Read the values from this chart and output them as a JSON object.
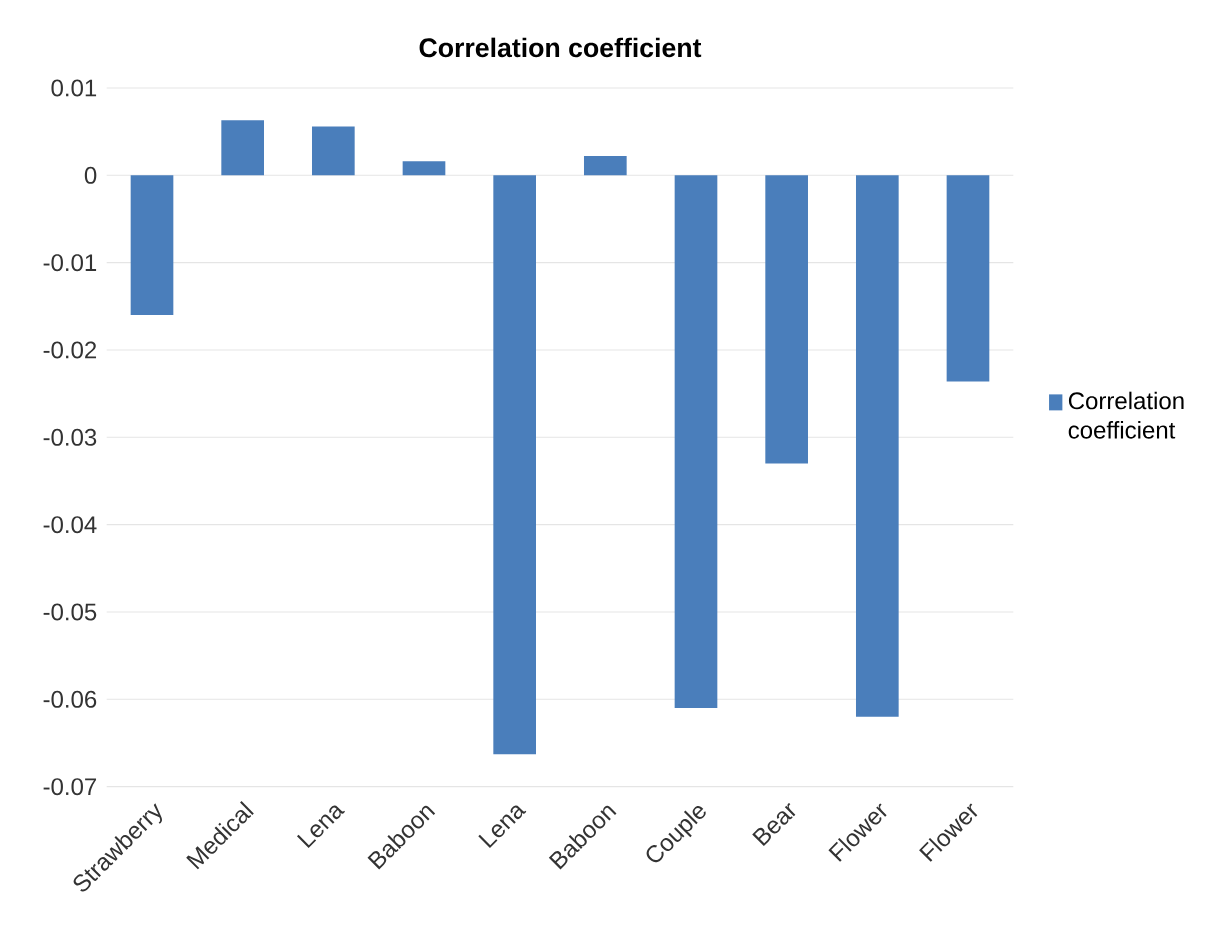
{
  "chart_data": {
    "type": "bar",
    "title": "Correlation coefficient",
    "categories": [
      "Strawberry",
      "Medical",
      "Lena",
      "Baboon",
      "Lena",
      "Baboon",
      "Couple",
      "Bear",
      "Flower",
      "Flower"
    ],
    "series": [
      {
        "name": "Correlation coefficient",
        "color": "#4a7ebb",
        "values": [
          -0.016,
          0.0063,
          0.0056,
          0.0016,
          -0.0663,
          0.0022,
          -0.061,
          -0.033,
          -0.062,
          -0.0236
        ]
      }
    ],
    "ylim": [
      -0.07,
      0.01
    ],
    "yticks": [
      0.01,
      0,
      -0.01,
      -0.02,
      -0.03,
      -0.04,
      -0.05,
      -0.06,
      -0.07
    ],
    "grid": "y",
    "legend": "right"
  }
}
